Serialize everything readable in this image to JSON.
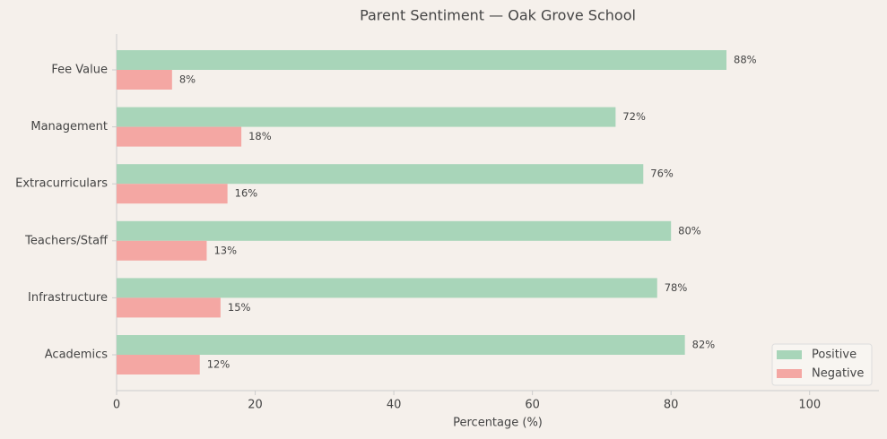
{
  "chart_data": {
    "type": "barh",
    "title": "Parent Sentiment — Oak Grove School",
    "xlabel": "Percentage (%)",
    "categories": [
      "Fee Value",
      "Management",
      "Extracurriculars",
      "Teachers/Staff",
      "Infrastructure",
      "Academics"
    ],
    "series": [
      {
        "name": "Positive",
        "color": "#a8d5b9",
        "values": [
          88,
          72,
          76,
          80,
          78,
          82
        ],
        "value_labels": [
          "88%",
          "72%",
          "76%",
          "80%",
          "78%",
          "82%"
        ]
      },
      {
        "name": "Negative",
        "color": "#f4a7a3",
        "values": [
          8,
          18,
          16,
          13,
          15,
          12
        ],
        "value_labels": [
          "8%",
          "18%",
          "16%",
          "13%",
          "15%",
          "12%"
        ]
      }
    ],
    "xlim": [
      0,
      110
    ],
    "xticks": [
      0,
      20,
      40,
      60,
      80,
      100
    ],
    "legend": "lower right"
  }
}
